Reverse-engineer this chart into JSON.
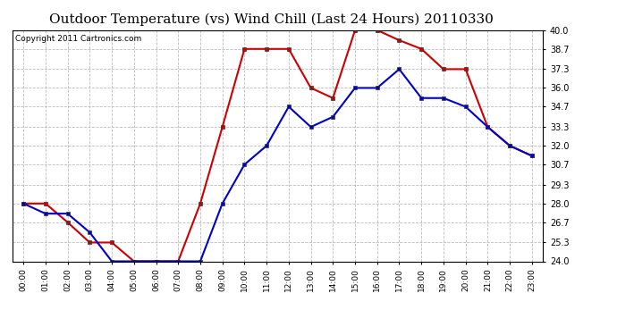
{
  "title": "Outdoor Temperature (vs) Wind Chill (Last 24 Hours) 20110330",
  "copyright": "Copyright 2011 Cartronics.com",
  "x_labels": [
    "00:00",
    "01:00",
    "02:00",
    "03:00",
    "04:00",
    "05:00",
    "06:00",
    "07:00",
    "08:00",
    "09:00",
    "10:00",
    "11:00",
    "12:00",
    "13:00",
    "14:00",
    "15:00",
    "16:00",
    "17:00",
    "18:00",
    "19:00",
    "20:00",
    "21:00",
    "22:00",
    "23:00"
  ],
  "temp_red": [
    28.0,
    28.0,
    26.7,
    25.3,
    25.3,
    24.0,
    24.0,
    24.0,
    28.0,
    33.3,
    38.7,
    38.7,
    38.7,
    36.0,
    35.3,
    40.0,
    40.0,
    39.3,
    38.7,
    37.3,
    37.3,
    33.3,
    32.0,
    31.3
  ],
  "wind_chill_blue": [
    28.0,
    27.3,
    27.3,
    26.0,
    24.0,
    24.0,
    24.0,
    24.0,
    24.0,
    28.0,
    30.7,
    32.0,
    34.7,
    33.3,
    34.0,
    36.0,
    36.0,
    37.3,
    35.3,
    35.3,
    34.7,
    33.3,
    32.0,
    31.3
  ],
  "y_ticks": [
    24.0,
    25.3,
    26.7,
    28.0,
    29.3,
    30.7,
    32.0,
    33.3,
    34.7,
    36.0,
    37.3,
    38.7,
    40.0
  ],
  "y_min": 24.0,
  "y_max": 40.0,
  "red_color": "#cc0000",
  "blue_color": "#0000cc",
  "bg_color": "#ffffff",
  "plot_bg_color": "#ffffff",
  "grid_color": "#bbbbbb",
  "title_fontsize": 11,
  "copyright_fontsize": 6.5
}
